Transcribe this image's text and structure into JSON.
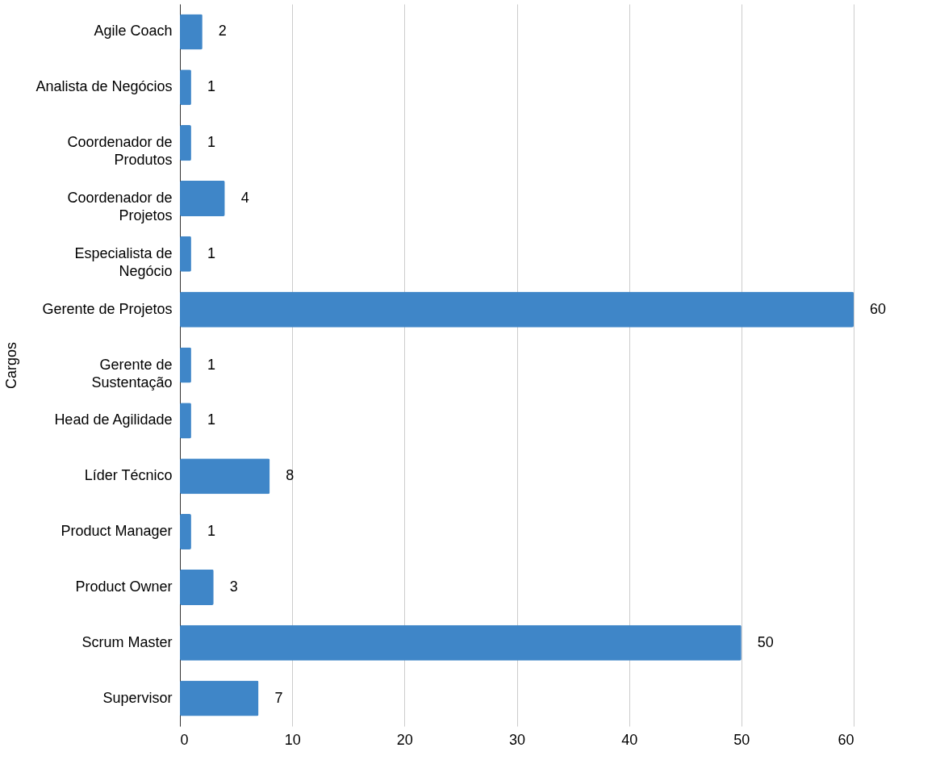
{
  "chart_data": {
    "type": "bar",
    "orientation": "horizontal",
    "ylabel": "Cargos",
    "categories": [
      "Agile Coach",
      "Analista de Negócios",
      "Coordenador de Produtos",
      "Coordenador de Projetos",
      "Especialista de Negócio",
      "Gerente de Projetos",
      "Gerente de Sustentação",
      "Head de Agilidade",
      "Líder Técnico",
      "Product Manager",
      "Product Owner",
      "Scrum Master",
      "Supervisor"
    ],
    "values": [
      2,
      1,
      1,
      4,
      1,
      60,
      1,
      1,
      8,
      1,
      3,
      50,
      7
    ],
    "color": "#3f86c8",
    "xlim": [
      0,
      60
    ],
    "xticks": [
      0,
      10,
      20,
      30,
      40,
      50,
      60
    ],
    "grid": "x",
    "data_labels": true
  }
}
